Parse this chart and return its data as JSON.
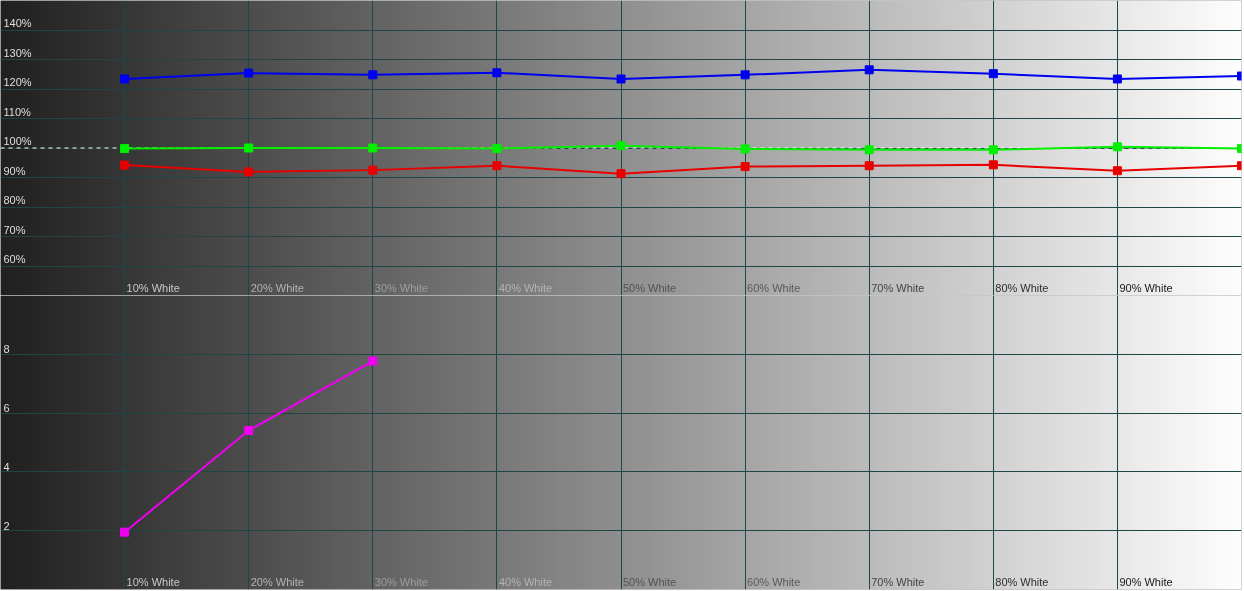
{
  "chart_data": [
    {
      "type": "line",
      "categories": [
        "10% White",
        "20% White",
        "30% White",
        "40% White",
        "50% White",
        "60% White",
        "70% White",
        "80% White",
        "90% White",
        null
      ],
      "series": [
        {
          "color": "#0000f0",
          "values": [
            123.4,
            125.4,
            124.8,
            125.5,
            123.4,
            124.8,
            126.5,
            125.2,
            123.4,
            124.4
          ]
        },
        {
          "color": "#00f000",
          "values": [
            99.8,
            100,
            100,
            99.8,
            100.8,
            99.7,
            99.4,
            99.4,
            100.4,
            99.8
          ]
        },
        {
          "color": "#e80000",
          "values": [
            94.2,
            91.9,
            92.5,
            94.0,
            91.3,
            93.7,
            94.0,
            94.3,
            92.3,
            94.0
          ]
        }
      ],
      "ylim": [
        50,
        150
      ],
      "yticks": [
        {
          "value": 60,
          "label": "60%"
        },
        {
          "value": 70,
          "label": "70%"
        },
        {
          "value": 80,
          "label": "80%"
        },
        {
          "value": 90,
          "label": "90%"
        },
        {
          "value": 100,
          "label": "100%"
        },
        {
          "value": 110,
          "label": "110%"
        },
        {
          "value": 120,
          "label": "120%"
        },
        {
          "value": 130,
          "label": "130%"
        },
        {
          "value": 140,
          "label": "140%"
        }
      ],
      "grid": true,
      "marker": "square",
      "line_style": "solid",
      "ref_lines": [
        {
          "axis": "y",
          "value": 100,
          "color": "#ffffff",
          "line_style": "dashed"
        }
      ]
    },
    {
      "type": "line",
      "categories": [
        "10% White",
        "20% White",
        "30% White",
        "40% White",
        "50% White",
        "60% White",
        "70% White",
        "80% White",
        "90% White",
        null
      ],
      "series": [
        {
          "color": "#f000f0",
          "values": [
            1.95,
            5.41,
            7.77,
            null,
            null,
            null,
            null,
            null,
            null,
            null
          ]
        }
      ],
      "ylim": [
        0,
        10
      ],
      "yticks": [
        2,
        4,
        6,
        8
      ],
      "grid": true,
      "marker": "square",
      "line_style": "solid"
    }
  ]
}
